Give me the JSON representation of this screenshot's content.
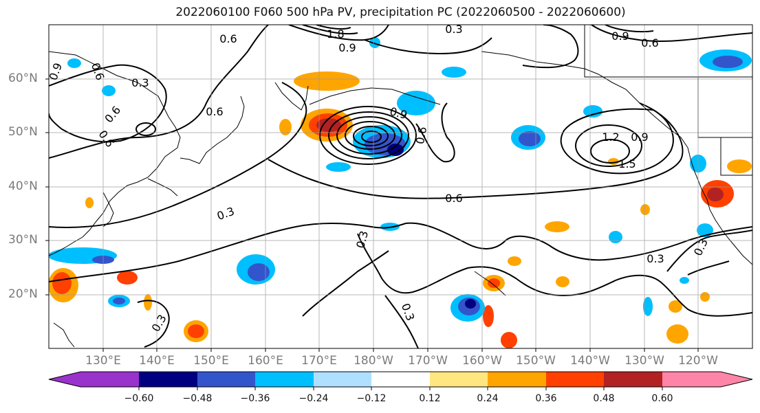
{
  "title": "2022060100 F060 500 hPa PV, precipitation PC (2022060500 - 2022060600)",
  "axes": {
    "lat_labels": [
      "60°N",
      "50°N",
      "40°N",
      "30°N",
      "20°N"
    ],
    "lon_labels": [
      "130°E",
      "140°E",
      "150°E",
      "160°E",
      "170°E",
      "180°W",
      "170°W",
      "160°W",
      "150°W",
      "140°W",
      "130°W",
      "120°W"
    ],
    "lon_range": [
      120,
      250
    ],
    "lat_range": [
      10,
      70
    ]
  },
  "colorbar": {
    "ticks": [
      "−0.60",
      "−0.48",
      "−0.36",
      "−0.24",
      "−0.12",
      "0.12",
      "0.24",
      "0.36",
      "0.48",
      "0.60"
    ],
    "colors": [
      "#9933cc",
      "#000080",
      "#3355cc",
      "#00bfff",
      "#b0e0ff",
      "#ffffff",
      "#ffe680",
      "#ffa500",
      "#ff4000",
      "#b22222",
      "#ff85a8"
    ]
  },
  "contour_labels": [
    {
      "text": "0.6"
    },
    {
      "text": "0.9"
    },
    {
      "text": "0.6"
    },
    {
      "text": "0.3"
    },
    {
      "text": "0.6"
    },
    {
      "text": "0.6"
    },
    {
      "text": "0.6"
    },
    {
      "text": "0.3"
    },
    {
      "text": "1.8"
    },
    {
      "text": "0.9"
    },
    {
      "text": "0.3"
    },
    {
      "text": "0.9"
    },
    {
      "text": "0.6"
    },
    {
      "text": "0.6"
    },
    {
      "text": "0.9"
    },
    {
      "text": "1.2"
    },
    {
      "text": "0.9"
    },
    {
      "text": "1.5"
    },
    {
      "text": "0.6"
    },
    {
      "text": "0.3"
    },
    {
      "text": "0.3"
    },
    {
      "text": "0.3"
    },
    {
      "text": "0.3"
    },
    {
      "text": "0.3"
    }
  ]
}
